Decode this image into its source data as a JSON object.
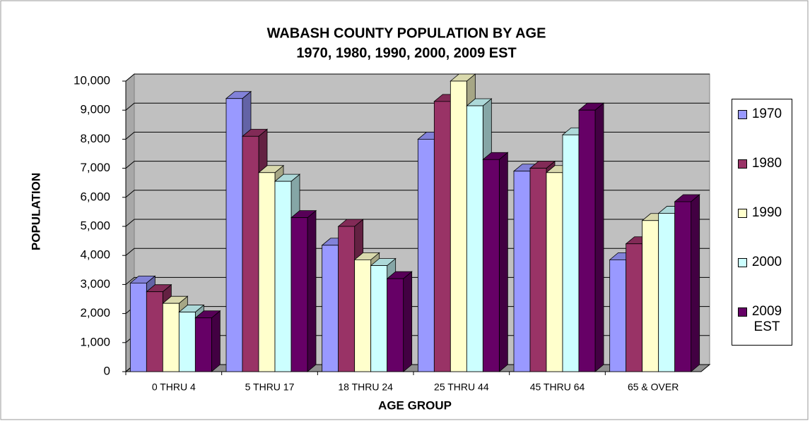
{
  "chart_data": {
    "type": "bar3d",
    "title": "WABASH COUNTY POPULATION BY AGE",
    "subtitle": "1970, 1980, 1990, 2000, 2009 EST",
    "x_label": "AGE GROUP",
    "y_label": "POPULATION",
    "categories": [
      "0 THRU 4",
      "5 THRU 17",
      "18 THRU 24",
      "25 THRU 44",
      "45 THRU 64",
      "65 & OVER"
    ],
    "series": [
      {
        "name": "1970",
        "color": "#9999ff",
        "values": [
          3050,
          9400,
          4350,
          8000,
          6900,
          3850
        ]
      },
      {
        "name": "1980",
        "color": "#993366",
        "values": [
          2750,
          8100,
          5000,
          9300,
          7000,
          4400
        ]
      },
      {
        "name": "1990",
        "color": "#ffffcc",
        "values": [
          2350,
          6850,
          3850,
          10000,
          6850,
          5200
        ]
      },
      {
        "name": "2000",
        "color": "#ccffff",
        "values": [
          2050,
          6550,
          3650,
          9150,
          8150,
          5450
        ]
      },
      {
        "name": "2009 EST",
        "color": "#660066",
        "values": [
          1850,
          5300,
          3200,
          7300,
          9000,
          5850
        ]
      }
    ],
    "ylim": [
      0,
      10000
    ],
    "yticks": [
      0,
      {
        "value": 1000,
        "label": "1,000"
      },
      {
        "value": 2000,
        "label": "2,000"
      },
      {
        "value": 3000,
        "label": "3,000"
      },
      {
        "value": 4000,
        "label": "4,000"
      },
      {
        "value": 5000,
        "label": "5,000"
      },
      {
        "value": 6000,
        "label": "6,000"
      },
      {
        "value": 7000,
        "label": "7,000"
      },
      {
        "value": 8000,
        "label": "8,000"
      },
      {
        "value": 9000,
        "label": "9,000"
      },
      {
        "value": 10000,
        "label": "10,000"
      }
    ],
    "grid": true,
    "legend": "right"
  }
}
